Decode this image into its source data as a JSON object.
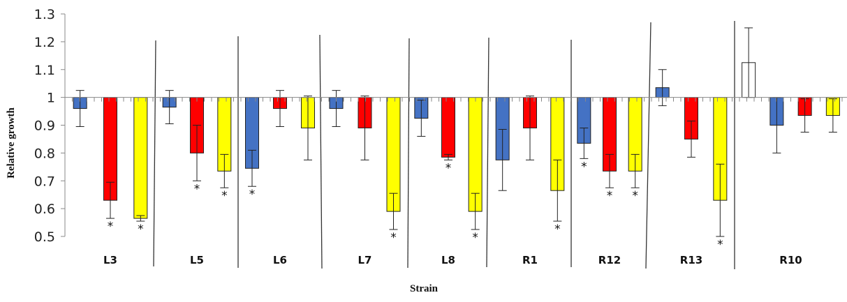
{
  "chart_data": {
    "type": "bar",
    "xlabel": "Strain",
    "ylabel": "Relative growth",
    "ylim": [
      0.5,
      1.3
    ],
    "baseline": 1.0,
    "yticks": [
      "0.5",
      "0.6",
      "0.7",
      "0.8",
      "0.9",
      "1",
      "1.1",
      "1.2",
      "1.3"
    ],
    "grid": false,
    "legend": "none",
    "colors": [
      "#4472c4",
      "#ff0000",
      "#ffff00",
      "#ffffff"
    ],
    "significance_mark": "*",
    "groups": [
      {
        "label": "L3",
        "bars": [
          {
            "value": 0.96,
            "err": 0.065,
            "color": "#4472c4",
            "sig": false
          },
          {
            "value": 0.63,
            "err": 0.065,
            "color": "#ff0000",
            "sig": true
          },
          {
            "value": 0.565,
            "err": 0.01,
            "color": "#ffff00",
            "sig": true
          }
        ]
      },
      {
        "label": "L5",
        "bars": [
          {
            "value": 0.965,
            "err": 0.06,
            "color": "#4472c4",
            "sig": false
          },
          {
            "value": 0.8,
            "err": 0.1,
            "color": "#ff0000",
            "sig": true
          },
          {
            "value": 0.735,
            "err": 0.06,
            "color": "#ffff00",
            "sig": true
          }
        ]
      },
      {
        "label": "L6",
        "bars": [
          {
            "value": 0.745,
            "err": 0.065,
            "color": "#4472c4",
            "sig": true
          },
          {
            "value": 0.96,
            "err": 0.065,
            "color": "#ff0000",
            "sig": false
          },
          {
            "value": 0.89,
            "err": 0.115,
            "color": "#ffff00",
            "sig": false
          }
        ]
      },
      {
        "label": "L7",
        "bars": [
          {
            "value": 0.96,
            "err": 0.065,
            "color": "#4472c4",
            "sig": false
          },
          {
            "value": 0.89,
            "err": 0.115,
            "color": "#ff0000",
            "sig": false
          },
          {
            "value": 0.59,
            "err": 0.065,
            "color": "#ffff00",
            "sig": true
          }
        ]
      },
      {
        "label": "L8",
        "bars": [
          {
            "value": 0.925,
            "err": 0.065,
            "color": "#4472c4",
            "sig": false
          },
          {
            "value": 0.785,
            "err": 0.01,
            "color": "#ff0000",
            "sig": true
          },
          {
            "value": 0.59,
            "err": 0.065,
            "color": "#ffff00",
            "sig": true
          }
        ]
      },
      {
        "label": "R1",
        "bars": [
          {
            "value": 0.775,
            "err": 0.11,
            "color": "#4472c4",
            "sig": false
          },
          {
            "value": 0.89,
            "err": 0.115,
            "color": "#ff0000",
            "sig": false
          },
          {
            "value": 0.665,
            "err": 0.11,
            "color": "#ffff00",
            "sig": true
          }
        ]
      },
      {
        "label": "R12",
        "bars": [
          {
            "value": 0.835,
            "err": 0.055,
            "color": "#4472c4",
            "sig": true
          },
          {
            "value": 0.735,
            "err": 0.06,
            "color": "#ff0000",
            "sig": true
          },
          {
            "value": 0.735,
            "err": 0.06,
            "color": "#ffff00",
            "sig": true
          }
        ]
      },
      {
        "label": "R13",
        "bars": [
          {
            "value": 1.035,
            "err": 0.065,
            "color": "#4472c4",
            "sig": false
          },
          {
            "value": 0.85,
            "err": 0.065,
            "color": "#ff0000",
            "sig": false
          },
          {
            "value": 0.63,
            "err": 0.13,
            "color": "#ffff00",
            "sig": true
          }
        ]
      },
      {
        "label": "R10",
        "bars": [
          {
            "value": 1.125,
            "err": 0.125,
            "color": "#ffffff",
            "sig": false
          },
          {
            "value": 0.9,
            "err": 0.1,
            "color": "#4472c4",
            "sig": false
          },
          {
            "value": 0.935,
            "err": 0.06,
            "color": "#ff0000",
            "sig": false
          },
          {
            "value": 0.935,
            "err": 0.06,
            "color": "#ffff00",
            "sig": false
          }
        ]
      }
    ]
  }
}
